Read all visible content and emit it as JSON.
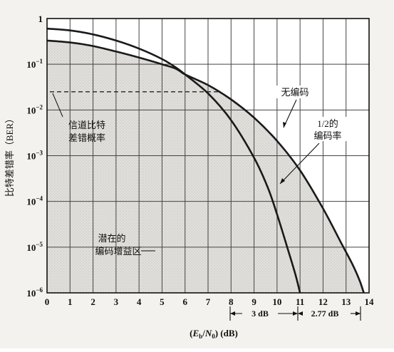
{
  "chart_data": {
    "type": "line",
    "title": "",
    "ylabel": "比特差错率（BER）",
    "xlabel_parts": [
      "(",
      "E",
      "b",
      "/",
      "N",
      "0",
      ") (dB)"
    ],
    "x_ticks": [
      0,
      1,
      2,
      3,
      4,
      5,
      6,
      7,
      8,
      9,
      10,
      11,
      12,
      13,
      14
    ],
    "xlim": [
      0,
      14
    ],
    "y_scale": "log",
    "ylim": [
      1e-06,
      1
    ],
    "y_ticks": [
      {
        "value": 1,
        "base": "1",
        "exp": ""
      },
      {
        "value": 0.1,
        "base": "10",
        "exp": "−1"
      },
      {
        "value": 0.01,
        "base": "10",
        "exp": "−2"
      },
      {
        "value": 0.001,
        "base": "10",
        "exp": "−3"
      },
      {
        "value": 0.0001,
        "base": "10",
        "exp": "−4"
      },
      {
        "value": 1e-05,
        "base": "10",
        "exp": "−5"
      },
      {
        "value": 1e-06,
        "base": "10",
        "exp": "−6"
      }
    ],
    "grid": true,
    "series": [
      {
        "name": "无编码",
        "x": [
          0,
          1,
          2,
          3,
          4,
          5,
          5.6,
          6,
          7,
          8,
          9,
          10,
          11,
          12,
          12.8,
          13.3,
          13.6,
          13.77
        ],
        "y": [
          0.33,
          0.3,
          0.25,
          0.19,
          0.14,
          0.1,
          0.08,
          0.06,
          0.035,
          0.017,
          0.0068,
          0.0021,
          0.00048,
          7e-05,
          1.2e-05,
          4e-06,
          1.8e-06,
          1e-06
        ]
      },
      {
        "name": "1/2的编码率",
        "x": [
          0,
          1,
          2,
          3,
          4,
          5,
          5.6,
          6,
          7,
          8,
          9,
          9.6,
          10,
          10.5,
          10.8,
          11
        ],
        "y": [
          0.6,
          0.55,
          0.45,
          0.33,
          0.22,
          0.13,
          0.085,
          0.06,
          0.023,
          0.006,
          0.0009,
          0.0002,
          5.2e-05,
          8e-06,
          2.5e-06,
          1e-06
        ]
      }
    ],
    "channel_ber": 0.025,
    "annotations": {
      "uncoded": "无编码",
      "rate_half": [
        "1/2的",
        "编码率"
      ],
      "channel_ber": [
        "信道比特",
        "差错概率"
      ],
      "coding_gain": [
        "潜在的",
        "编码增益区"
      ]
    },
    "gap_labels": [
      "3 dB",
      "2.77 dB"
    ]
  }
}
